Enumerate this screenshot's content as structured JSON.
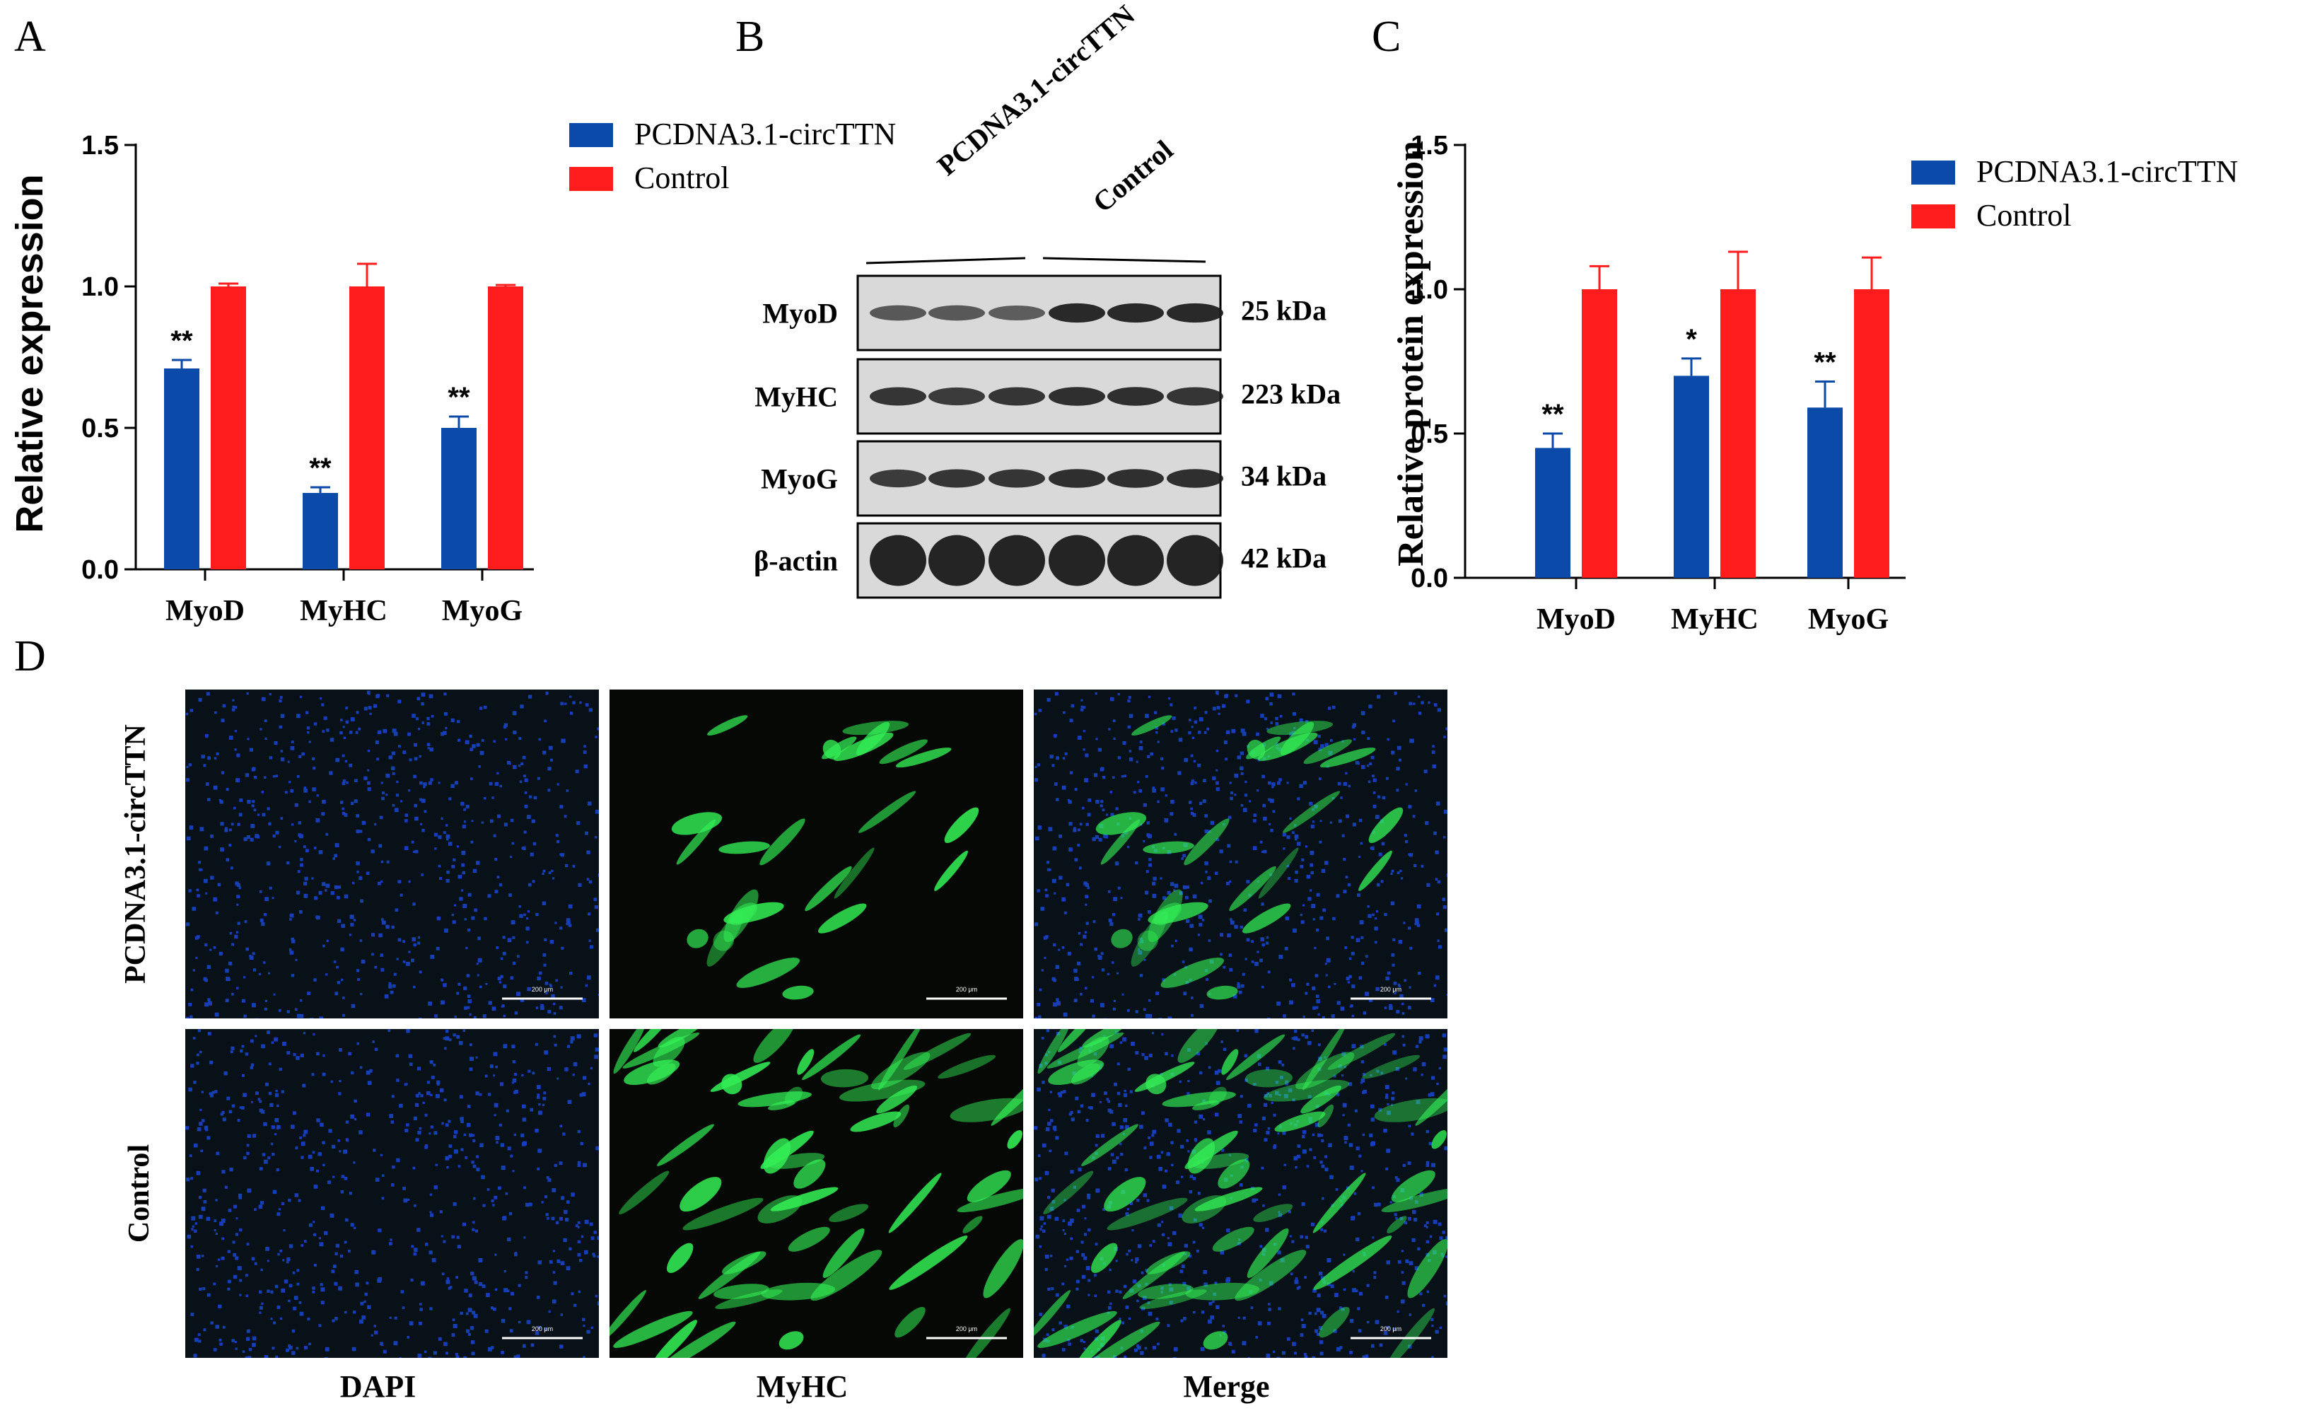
{
  "panel_labels": {
    "a": "A",
    "b": "B",
    "c": "C",
    "d": "D"
  },
  "colors": {
    "series1": "#0b4aa8",
    "series2": "#ff1c1c",
    "dapi": "#1846d4",
    "myhc": "#33ee55",
    "blot_bg": "#d9d9d9",
    "band": "#1a1a1a"
  },
  "chart_data": [
    {
      "type": "bar",
      "panel": "A",
      "categories": [
        "MyoD",
        "MyHC",
        "MyoG"
      ],
      "ylabel": "Relative expression",
      "ylim": [
        0,
        1.5
      ],
      "yticks": [
        "0.0",
        "0.5",
        "1.0",
        "1.5"
      ],
      "legend_position": "top-right",
      "series": [
        {
          "name": "PCDNA3.1-circTTN",
          "values": [
            0.71,
            0.27,
            0.5
          ],
          "errors": [
            0.03,
            0.02,
            0.04
          ],
          "annotations": [
            "**",
            "**",
            "**"
          ]
        },
        {
          "name": "Control",
          "values": [
            1.0,
            1.0,
            1.0
          ],
          "errors": [
            0.01,
            0.08,
            0.005
          ],
          "annotations": [
            "",
            "",
            ""
          ]
        }
      ]
    },
    {
      "type": "bar",
      "panel": "C",
      "categories": [
        "MyoD",
        "MyHC",
        "MyoG"
      ],
      "ylabel": "Relative protein expression",
      "ylim": [
        0,
        1.5
      ],
      "yticks": [
        "0.0",
        "0.5",
        "1.0",
        "1.5"
      ],
      "legend_position": "top-right",
      "series": [
        {
          "name": "PCDNA3.1-circTTN",
          "values": [
            0.45,
            0.7,
            0.59
          ],
          "errors": [
            0.05,
            0.06,
            0.09
          ],
          "annotations": [
            "**",
            "*",
            "**"
          ]
        },
        {
          "name": "Control",
          "values": [
            1.0,
            1.0,
            1.0
          ],
          "errors": [
            0.08,
            0.13,
            0.11
          ],
          "annotations": [
            "",
            "",
            ""
          ]
        }
      ]
    }
  ],
  "western_blot": {
    "group_labels": [
      "PCDNA3.1-circTTN",
      "Control"
    ],
    "rows": [
      {
        "protein": "MyoD",
        "size": "25 kDa",
        "intensity": [
          0.55,
          0.55,
          0.5,
          0.95,
          0.95,
          0.95
        ]
      },
      {
        "protein": "MyHC",
        "size": "223 kDa",
        "intensity": [
          0.85,
          0.8,
          0.85,
          0.9,
          0.9,
          0.85
        ]
      },
      {
        "protein": "MyoG",
        "size": "34 kDa",
        "intensity": [
          0.8,
          0.85,
          0.85,
          0.9,
          0.9,
          0.9
        ]
      },
      {
        "protein": "β-actin",
        "size": "42 kDa",
        "intensity": [
          1,
          1,
          1,
          1,
          1,
          1
        ]
      }
    ]
  },
  "microscopy": {
    "columns": [
      "DAPI",
      "MyHC",
      "Merge"
    ],
    "rows": [
      "PCDNA3.1-circTTN",
      "Control"
    ],
    "scale_bar": "200 μm"
  }
}
